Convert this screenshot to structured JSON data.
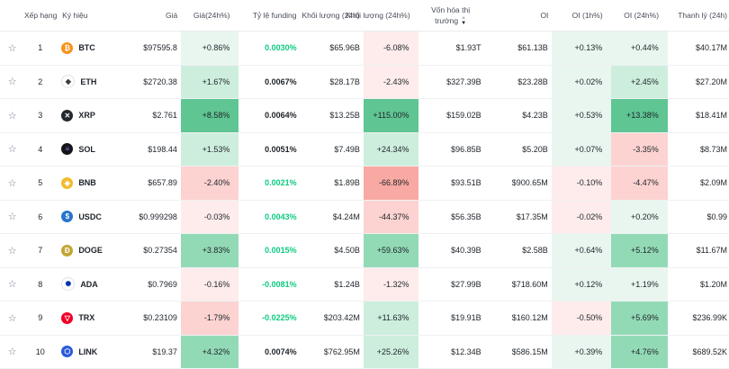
{
  "header": {
    "rank": "Xếp hạng",
    "symbol": "Ký hiệu",
    "price": "Giá",
    "price_change": "Giá(24h%)",
    "funding": "Tỷ lệ funding",
    "volume": "Khối lượng (24h)",
    "volume_change": "Khối lượng (24h%)",
    "market_cap_line1": "Vốn hóa thị",
    "market_cap_line2": "trường",
    "oi": "OI",
    "oi_1h": "OI (1h%)",
    "oi_24h": "OI (24h%)",
    "liquidation": "Thanh lý (24h)"
  },
  "colors": {
    "positive_text": "#0ecb81",
    "negative_text": "#f6465d",
    "green_light": "#e9f6ef",
    "green_mid": "#cdeedd",
    "green_strong": "#5fc593",
    "green_mid2": "#92dab6",
    "red_light": "#fdeceb",
    "red_mid": "#fcd3d1",
    "red_strong": "#f9a9a3"
  },
  "rows": [
    {
      "rank": "1",
      "symbol": "BTC",
      "icon": "btc-icon",
      "price": "$97595.8",
      "price_change": "+0.86%",
      "funding": "0.0030%",
      "volume": "$65.96B",
      "volume_change": "-6.08%",
      "market_cap": "$1.93T",
      "oi": "$61.13B",
      "oi_1h": "+0.13%",
      "oi_24h": "+0.44%",
      "liquidation": "$40.17M"
    },
    {
      "rank": "2",
      "symbol": "ETH",
      "icon": "eth-icon",
      "price": "$2720.38",
      "price_change": "+1.67%",
      "funding": "0.0067%",
      "volume": "$28.17B",
      "volume_change": "-2.43%",
      "market_cap": "$327.39B",
      "oi": "$23.28B",
      "oi_1h": "+0.02%",
      "oi_24h": "+2.45%",
      "liquidation": "$27.20M"
    },
    {
      "rank": "3",
      "symbol": "XRP",
      "icon": "xrp-icon",
      "price": "$2.761",
      "price_change": "+8.58%",
      "funding": "0.0064%",
      "volume": "$13.25B",
      "volume_change": "+115.00%",
      "market_cap": "$159.02B",
      "oi": "$4.23B",
      "oi_1h": "+0.53%",
      "oi_24h": "+13.38%",
      "liquidation": "$18.41M"
    },
    {
      "rank": "4",
      "symbol": "SOL",
      "icon": "sol-icon",
      "price": "$198.44",
      "price_change": "+1.53%",
      "funding": "0.0051%",
      "volume": "$7.49B",
      "volume_change": "+24.34%",
      "market_cap": "$96.85B",
      "oi": "$5.20B",
      "oi_1h": "+0.07%",
      "oi_24h": "-3.35%",
      "liquidation": "$8.73M"
    },
    {
      "rank": "5",
      "symbol": "BNB",
      "icon": "bnb-icon",
      "price": "$657.89",
      "price_change": "-2.40%",
      "funding": "0.0021%",
      "volume": "$1.89B",
      "volume_change": "-66.89%",
      "market_cap": "$93.51B",
      "oi": "$900.65M",
      "oi_1h": "-0.10%",
      "oi_24h": "-4.47%",
      "liquidation": "$2.09M"
    },
    {
      "rank": "6",
      "symbol": "USDC",
      "icon": "usdc-icon",
      "price": "$0.999298",
      "price_change": "-0.03%",
      "funding": "0.0043%",
      "volume": "$4.24M",
      "volume_change": "-44.37%",
      "market_cap": "$56.35B",
      "oi": "$17.35M",
      "oi_1h": "-0.02%",
      "oi_24h": "+0.20%",
      "liquidation": "$0.99"
    },
    {
      "rank": "7",
      "symbol": "DOGE",
      "icon": "doge-icon",
      "price": "$0.27354",
      "price_change": "+3.83%",
      "funding": "0.0015%",
      "volume": "$4.50B",
      "volume_change": "+59.63%",
      "market_cap": "$40.39B",
      "oi": "$2.58B",
      "oi_1h": "+0.64%",
      "oi_24h": "+5.12%",
      "liquidation": "$11.67M"
    },
    {
      "rank": "8",
      "symbol": "ADA",
      "icon": "ada-icon",
      "price": "$0.7969",
      "price_change": "-0.16%",
      "funding": "-0.0081%",
      "volume": "$1.24B",
      "volume_change": "-1.32%",
      "market_cap": "$27.99B",
      "oi": "$718.60M",
      "oi_1h": "+0.12%",
      "oi_24h": "+1.19%",
      "liquidation": "$1.20M"
    },
    {
      "rank": "9",
      "symbol": "TRX",
      "icon": "trx-icon",
      "price": "$0.23109",
      "price_change": "-1.79%",
      "funding": "-0.0225%",
      "volume": "$203.42M",
      "volume_change": "+11.63%",
      "market_cap": "$19.91B",
      "oi": "$160.12M",
      "oi_1h": "-0.50%",
      "oi_24h": "+5.69%",
      "liquidation": "$236.99K"
    },
    {
      "rank": "10",
      "symbol": "LINK",
      "icon": "link-icon",
      "price": "$19.37",
      "price_change": "+4.32%",
      "funding": "0.0074%",
      "volume": "$762.95M",
      "volume_change": "+25.26%",
      "market_cap": "$12.34B",
      "oi": "$586.15M",
      "oi_1h": "+0.39%",
      "oi_24h": "+4.76%",
      "liquidation": "$689.52K"
    }
  ]
}
